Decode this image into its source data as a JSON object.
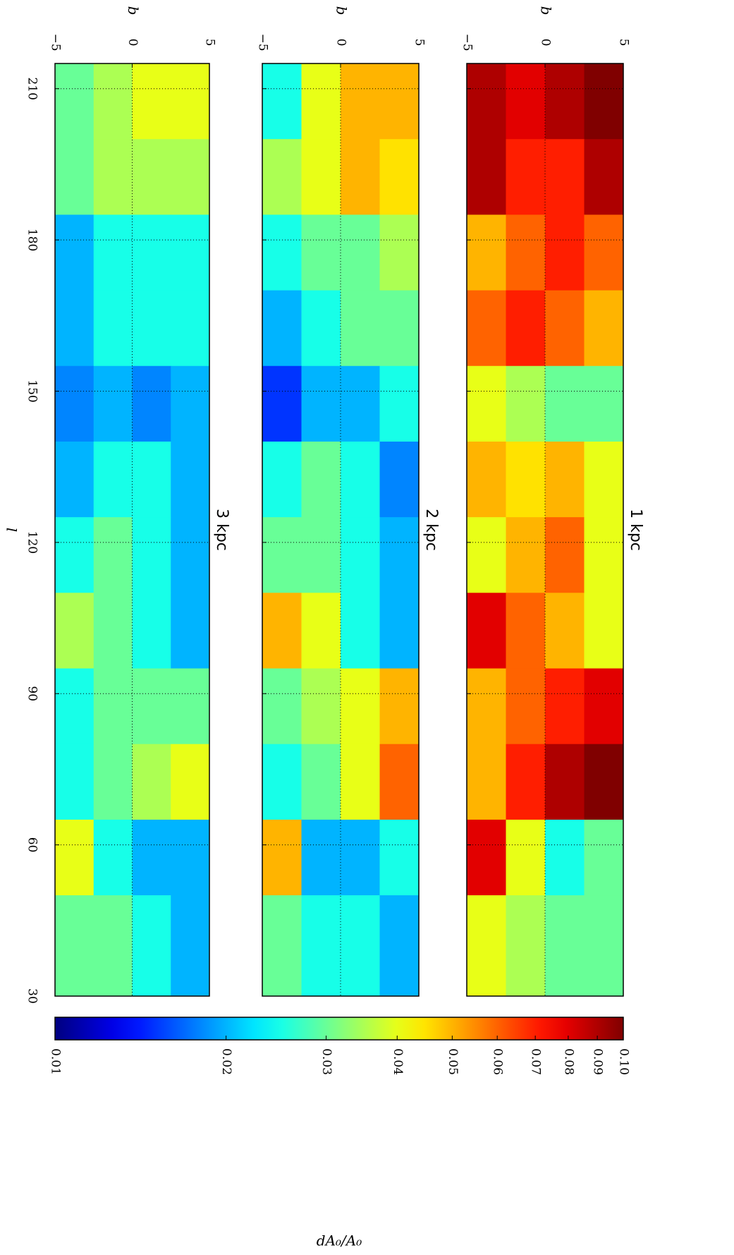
{
  "chart_data": [
    {
      "type": "heatmap",
      "title": "1 kpc",
      "xlabel": "b",
      "xlim": [
        -5,
        5
      ],
      "xticks": [
        {
          "value": -5,
          "label": "−5"
        },
        0,
        5
      ],
      "ylim": [
        215,
        30
      ],
      "yticks": [
        210,
        180,
        150,
        120,
        90,
        60,
        30
      ],
      "show_yticklabels": false,
      "grid": true,
      "l_edges": [
        215,
        200,
        185,
        170,
        155,
        140,
        125,
        110,
        95,
        80,
        65,
        50,
        30
      ],
      "b_edges": [
        -5,
        -2.5,
        0,
        2.5,
        5
      ],
      "values": [
        [
          0.09,
          0.08,
          0.09,
          0.1
        ],
        [
          0.09,
          0.07,
          0.07,
          0.09
        ],
        [
          0.05,
          0.06,
          0.07,
          0.06
        ],
        [
          0.06,
          0.07,
          0.06,
          0.05
        ],
        [
          0.04,
          0.035,
          0.03,
          0.03
        ],
        [
          0.05,
          0.045,
          0.05,
          0.04
        ],
        [
          0.04,
          0.05,
          0.06,
          0.04
        ],
        [
          0.08,
          0.06,
          0.05,
          0.04
        ],
        [
          0.05,
          0.06,
          0.07,
          0.08
        ],
        [
          0.05,
          0.07,
          0.09,
          0.1
        ],
        [
          0.08,
          0.04,
          0.025,
          0.03
        ],
        [
          0.04,
          0.035,
          0.03,
          0.03
        ]
      ]
    },
    {
      "type": "heatmap",
      "title": "2 kpc",
      "xlabel": "b",
      "xlim": [
        -5,
        5
      ],
      "xticks": [
        {
          "value": -5,
          "label": "−5"
        },
        0,
        5
      ],
      "ylim": [
        215,
        30
      ],
      "yticks": [
        210,
        180,
        150,
        120,
        90,
        60,
        30
      ],
      "show_yticklabels": false,
      "grid": true,
      "l_edges": [
        215,
        200,
        185,
        170,
        155,
        140,
        125,
        110,
        95,
        80,
        65,
        50,
        30
      ],
      "b_edges": [
        -5,
        -2.5,
        0,
        2.5,
        5
      ],
      "values": [
        [
          0.025,
          0.04,
          0.05,
          0.05
        ],
        [
          0.035,
          0.04,
          0.05,
          0.045
        ],
        [
          0.025,
          0.03,
          0.03,
          0.035
        ],
        [
          0.02,
          0.025,
          0.03,
          0.03
        ],
        [
          0.015,
          0.02,
          0.02,
          0.025
        ],
        [
          0.025,
          0.03,
          0.025,
          0.018
        ],
        [
          0.03,
          0.03,
          0.025,
          0.02
        ],
        [
          0.05,
          0.04,
          0.025,
          0.02
        ],
        [
          0.03,
          0.035,
          0.04,
          0.05
        ],
        [
          0.025,
          0.03,
          0.04,
          0.06
        ],
        [
          0.05,
          0.02,
          0.02,
          0.025
        ],
        [
          0.03,
          0.025,
          0.025,
          0.02
        ]
      ]
    },
    {
      "type": "heatmap",
      "title": "3 kpc",
      "xlabel": "b",
      "ylabel": "l",
      "xlim": [
        -5,
        5
      ],
      "xticks": [
        {
          "value": -5,
          "label": "−5"
        },
        0,
        5
      ],
      "ylim": [
        215,
        30
      ],
      "yticks": [
        210,
        180,
        150,
        120,
        90,
        60,
        30
      ],
      "show_yticklabels": true,
      "grid": true,
      "l_edges": [
        215,
        200,
        185,
        170,
        155,
        140,
        125,
        110,
        95,
        80,
        65,
        50,
        30
      ],
      "b_edges": [
        -5,
        -2.5,
        0,
        2.5,
        5
      ],
      "values": [
        [
          0.03,
          0.035,
          0.04,
          0.04
        ],
        [
          0.03,
          0.035,
          0.035,
          0.035
        ],
        [
          0.02,
          0.025,
          0.025,
          0.025
        ],
        [
          0.02,
          0.025,
          0.025,
          0.025
        ],
        [
          0.018,
          0.02,
          0.018,
          0.02
        ],
        [
          0.02,
          0.025,
          0.025,
          0.02
        ],
        [
          0.025,
          0.03,
          0.025,
          0.02
        ],
        [
          0.035,
          0.03,
          0.025,
          0.02
        ],
        [
          0.025,
          0.03,
          0.03,
          0.03
        ],
        [
          0.025,
          0.03,
          0.035,
          0.04
        ],
        [
          0.04,
          0.025,
          0.02,
          0.02
        ],
        [
          0.03,
          0.03,
          0.025,
          0.02
        ]
      ]
    },
    {
      "type": "colorbar",
      "label": "dA₀/A₀",
      "colormap": "jet",
      "log_scale": true,
      "lim": [
        0.01,
        0.1
      ],
      "ticks": [
        0.01,
        0.02,
        0.03,
        0.04,
        0.05,
        0.06,
        0.07,
        0.08,
        0.09,
        {
          "value": 0.1,
          "label": "0.10"
        }
      ]
    }
  ]
}
